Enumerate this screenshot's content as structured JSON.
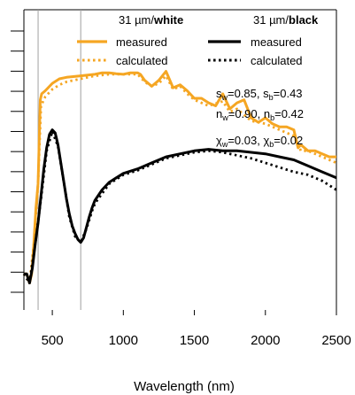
{
  "chart_data": {
    "type": "line",
    "title": "",
    "xlabel": "Wavelength (nm)",
    "ylabel": "",
    "xlim": [
      300,
      2500
    ],
    "ylim": [
      0,
      1
    ],
    "xticks": [
      500,
      1000,
      1500,
      2000,
      2500
    ],
    "xtick_labels": [
      "500",
      "1000",
      "1500",
      "2000",
      "2500"
    ],
    "ytick_count": 14,
    "grid": false,
    "vlines": [
      400,
      700
    ],
    "legend": {
      "placement": "top",
      "groups": [
        {
          "header_prefix": "31 µm/",
          "header_bold": "white",
          "color": "#f5a623"
        },
        {
          "header_prefix": "31 µm/",
          "header_bold": "black",
          "color": "#000000"
        }
      ],
      "entries": {
        "solid": "measured",
        "dotted": "calculated"
      }
    },
    "annotations": {
      "line1": {
        "a": "s",
        "a_sub": "w",
        "a_val": "=0.85, ",
        "b": "s",
        "b_sub": "b",
        "b_val": "=0.43"
      },
      "line2": {
        "a": "n",
        "a_sub": "w",
        "a_val": "=0.90, ",
        "b": "n",
        "b_sub": "b",
        "b_val": "=0.42"
      },
      "line3": {
        "a": "χ",
        "a_sub": "w",
        "a_val": "=0.03, ",
        "b": "χ",
        "b_sub": "b",
        "b_val": "=0.02"
      }
    },
    "series": [
      {
        "group": "white",
        "style": "measured",
        "color": "#f5a623",
        "x": [
          300,
          320,
          340,
          355,
          370,
          385,
          400,
          415,
          425,
          450,
          500,
          550,
          600,
          700,
          800,
          850,
          900,
          950,
          1000,
          1050,
          1100,
          1120,
          1150,
          1200,
          1250,
          1300,
          1350,
          1400,
          1450,
          1500,
          1550,
          1600,
          1650,
          1700,
          1750,
          1800,
          1850,
          1900,
          1950,
          2000,
          2050,
          2100,
          2150,
          2200,
          2230,
          2250,
          2300,
          2350,
          2400,
          2450,
          2500
        ],
        "y": [
          0.12,
          0.12,
          0.09,
          0.12,
          0.22,
          0.34,
          0.42,
          0.7,
          0.72,
          0.73,
          0.755,
          0.77,
          0.775,
          0.78,
          0.785,
          0.79,
          0.79,
          0.787,
          0.785,
          0.79,
          0.79,
          0.785,
          0.765,
          0.745,
          0.765,
          0.795,
          0.74,
          0.75,
          0.73,
          0.705,
          0.705,
          0.69,
          0.68,
          0.72,
          0.67,
          0.69,
          0.7,
          0.64,
          0.625,
          0.64,
          0.62,
          0.61,
          0.61,
          0.6,
          0.54,
          0.55,
          0.53,
          0.53,
          0.52,
          0.51,
          0.51
        ]
      },
      {
        "group": "white",
        "style": "calculated",
        "color": "#f5a623",
        "x": [
          300,
          340,
          370,
          400,
          420,
          450,
          500,
          550,
          600,
          700,
          800,
          900,
          1000,
          1100,
          1150,
          1200,
          1250,
          1300,
          1350,
          1400,
          1450,
          1500,
          1600,
          1700,
          1750,
          1800,
          1900,
          2000,
          2100,
          2200,
          2250,
          2300,
          2400,
          2500
        ],
        "y": [
          0.12,
          0.09,
          0.22,
          0.42,
          0.68,
          0.71,
          0.735,
          0.75,
          0.76,
          0.77,
          0.78,
          0.785,
          0.785,
          0.785,
          0.76,
          0.745,
          0.755,
          0.78,
          0.735,
          0.745,
          0.72,
          0.7,
          0.68,
          0.695,
          0.66,
          0.67,
          0.63,
          0.62,
          0.6,
          0.58,
          0.53,
          0.53,
          0.51,
          0.49
        ]
      },
      {
        "group": "black",
        "style": "measured",
        "color": "#000000",
        "x": [
          300,
          320,
          340,
          360,
          380,
          400,
          420,
          440,
          460,
          480,
          500,
          520,
          540,
          560,
          580,
          600,
          620,
          640,
          660,
          680,
          700,
          720,
          740,
          760,
          780,
          800,
          850,
          900,
          950,
          1000,
          1100,
          1200,
          1300,
          1400,
          1500,
          1600,
          1700,
          1800,
          1900,
          2000,
          2100,
          2200,
          2300,
          2400,
          2500
        ],
        "y": [
          0.12,
          0.12,
          0.09,
          0.14,
          0.22,
          0.29,
          0.38,
          0.47,
          0.54,
          0.585,
          0.6,
          0.59,
          0.55,
          0.49,
          0.43,
          0.37,
          0.32,
          0.28,
          0.255,
          0.235,
          0.225,
          0.24,
          0.275,
          0.31,
          0.34,
          0.365,
          0.4,
          0.425,
          0.44,
          0.455,
          0.47,
          0.49,
          0.51,
          0.52,
          0.53,
          0.535,
          0.53,
          0.53,
          0.525,
          0.52,
          0.51,
          0.5,
          0.48,
          0.46,
          0.44
        ]
      },
      {
        "group": "black",
        "style": "calculated",
        "color": "#000000",
        "x": [
          300,
          340,
          380,
          420,
          460,
          500,
          540,
          580,
          620,
          660,
          700,
          740,
          780,
          800,
          900,
          1000,
          1100,
          1200,
          1300,
          1400,
          1500,
          1600,
          1700,
          1800,
          1900,
          2000,
          2100,
          2200,
          2300,
          2400,
          2500
        ],
        "y": [
          0.12,
          0.09,
          0.22,
          0.37,
          0.53,
          0.595,
          0.545,
          0.43,
          0.31,
          0.245,
          0.225,
          0.27,
          0.33,
          0.355,
          0.42,
          0.45,
          0.465,
          0.485,
          0.505,
          0.515,
          0.525,
          0.53,
          0.525,
          0.515,
          0.505,
          0.49,
          0.475,
          0.46,
          0.45,
          0.43,
          0.4
        ]
      }
    ]
  }
}
